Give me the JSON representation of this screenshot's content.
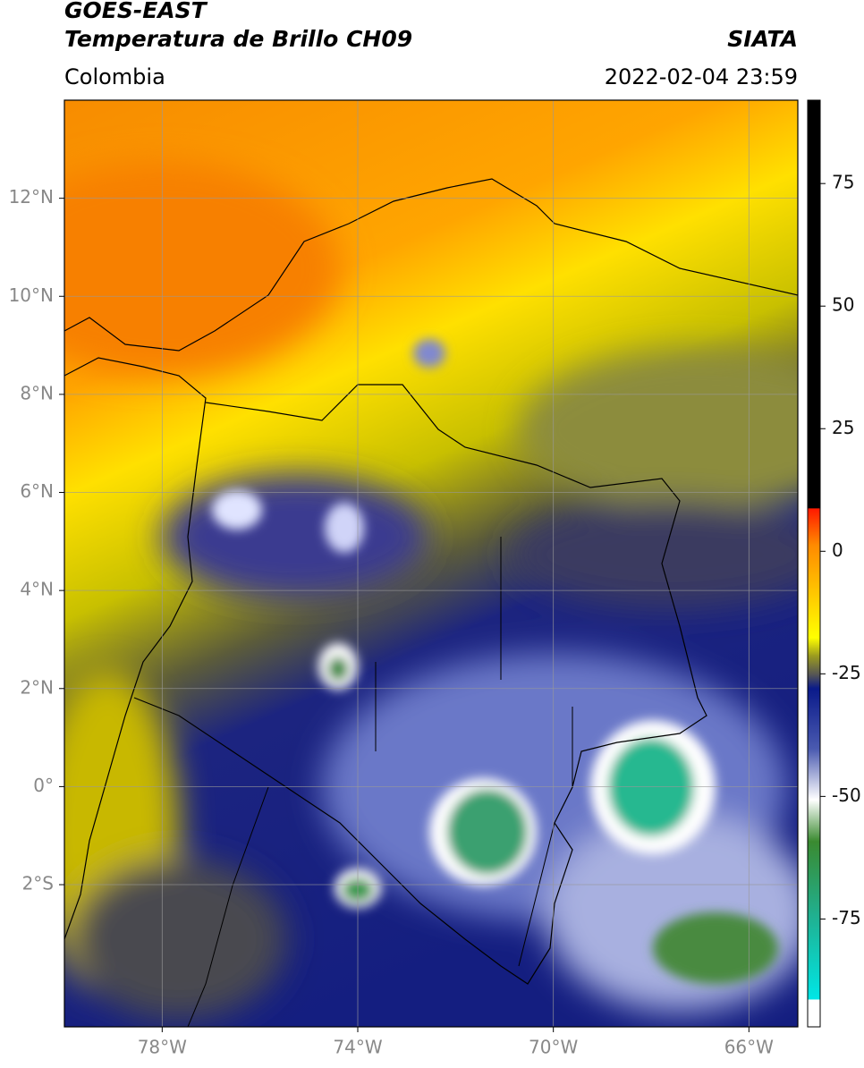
{
  "header": {
    "satellite": "GOES-EAST",
    "product": "Temperatura de Brillo CH09",
    "region": "Colombia",
    "source": "SIATA",
    "datetime": "2022-02-04 23:59"
  },
  "map": {
    "xlim": [
      -80,
      -65
    ],
    "ylim": [
      -4.9,
      14
    ],
    "xticks": [
      {
        "value": -78,
        "label": "78°W"
      },
      {
        "value": -74,
        "label": "74°W"
      },
      {
        "value": -70,
        "label": "70°W"
      },
      {
        "value": -66,
        "label": "66°W"
      }
    ],
    "yticks": [
      {
        "value": 12,
        "label": "12°N"
      },
      {
        "value": 10,
        "label": "10°N"
      },
      {
        "value": 8,
        "label": "8°N"
      },
      {
        "value": 6,
        "label": "6°N"
      },
      {
        "value": 4,
        "label": "4°N"
      },
      {
        "value": 2,
        "label": "2°N"
      },
      {
        "value": 0,
        "label": "0°"
      },
      {
        "value": -2,
        "label": "2°S"
      }
    ],
    "grid": true
  },
  "colorbar": {
    "lim": [
      -97,
      92
    ],
    "ticks": [
      75,
      50,
      25,
      0,
      -25,
      -50,
      -75
    ]
  }
}
